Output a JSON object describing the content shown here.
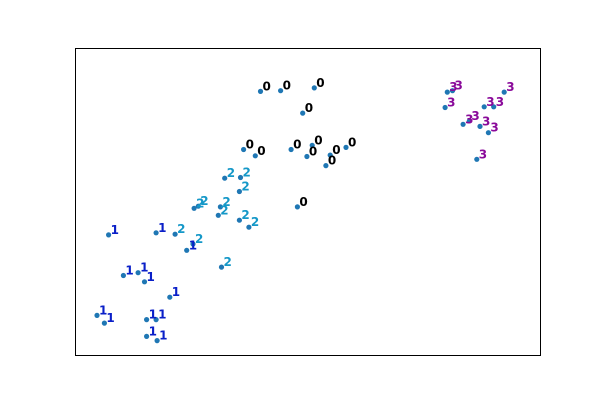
{
  "chart_data": {
    "type": "scatter",
    "title": "",
    "xlabel": "",
    "ylabel": "",
    "axis_visible": false,
    "grid": false,
    "legend": "none",
    "xlim": [
      -20,
      20
    ],
    "ylim": [
      -20,
      20
    ],
    "marker_color": "#1f77b4",
    "label_colors": {
      "0": "#000000",
      "1": "#0a1fc8",
      "2": "#1598c8",
      "3": "#8a0a9a"
    },
    "points": [
      {
        "x": -4.5,
        "y": 15.8,
        "label": "0"
      },
      {
        "x": -2.6,
        "y": 15.9,
        "label": "0"
      },
      {
        "x": 0.6,
        "y": 16.3,
        "label": "0"
      },
      {
        "x": -0.5,
        "y": 12.7,
        "label": "0"
      },
      {
        "x": -6.1,
        "y": 7.5,
        "label": "0"
      },
      {
        "x": -5.0,
        "y": 6.6,
        "label": "0"
      },
      {
        "x": -1.6,
        "y": 7.5,
        "label": "0"
      },
      {
        "x": 0.4,
        "y": 8.1,
        "label": "0"
      },
      {
        "x": 3.6,
        "y": 7.8,
        "label": "0"
      },
      {
        "x": 2.1,
        "y": 6.7,
        "label": "0"
      },
      {
        "x": -0.1,
        "y": 6.5,
        "label": "0"
      },
      {
        "x": 1.7,
        "y": 5.2,
        "label": "0"
      },
      {
        "x": -1.0,
        "y": -0.7,
        "label": "0"
      },
      {
        "x": 13.2,
        "y": 15.7,
        "label": "3"
      },
      {
        "x": 13.7,
        "y": 15.9,
        "label": "3"
      },
      {
        "x": 18.6,
        "y": 15.7,
        "label": "3"
      },
      {
        "x": 13.0,
        "y": 13.5,
        "label": "3"
      },
      {
        "x": 16.7,
        "y": 13.6,
        "label": "3"
      },
      {
        "x": 17.6,
        "y": 13.6,
        "label": "3"
      },
      {
        "x": 14.7,
        "y": 11.1,
        "label": "3"
      },
      {
        "x": 16.3,
        "y": 10.8,
        "label": "3"
      },
      {
        "x": 17.1,
        "y": 9.9,
        "label": "3"
      },
      {
        "x": 15.3,
        "y": 11.6,
        "label": "3"
      },
      {
        "x": 16.0,
        "y": 6.1,
        "label": "3"
      },
      {
        "x": -7.9,
        "y": 3.4,
        "label": "2"
      },
      {
        "x": -6.4,
        "y": 3.5,
        "label": "2"
      },
      {
        "x": -6.5,
        "y": 1.5,
        "label": "2"
      },
      {
        "x": -10.8,
        "y": -0.9,
        "label": "2"
      },
      {
        "x": -10.4,
        "y": -0.6,
        "label": "2"
      },
      {
        "x": -8.3,
        "y": -0.7,
        "label": "2"
      },
      {
        "x": -8.5,
        "y": -1.9,
        "label": "2"
      },
      {
        "x": -6.5,
        "y": -2.6,
        "label": "2"
      },
      {
        "x": -5.6,
        "y": -3.6,
        "label": "2"
      },
      {
        "x": -12.6,
        "y": -4.6,
        "label": "2"
      },
      {
        "x": -10.9,
        "y": -6.0,
        "label": "2"
      },
      {
        "x": -8.2,
        "y": -9.3,
        "label": "2"
      },
      {
        "x": -11.5,
        "y": -6.9,
        "label": "1"
      },
      {
        "x": -14.4,
        "y": -4.4,
        "label": "1"
      },
      {
        "x": -18.9,
        "y": -4.7,
        "label": "1"
      },
      {
        "x": -17.5,
        "y": -10.5,
        "label": "1"
      },
      {
        "x": -16.1,
        "y": -10.1,
        "label": "1"
      },
      {
        "x": -15.5,
        "y": -11.4,
        "label": "1"
      },
      {
        "x": -13.1,
        "y": -13.6,
        "label": "1"
      },
      {
        "x": -20.0,
        "y": -16.2,
        "label": "1"
      },
      {
        "x": -19.3,
        "y": -17.3,
        "label": "1"
      },
      {
        "x": -15.3,
        "y": -16.8,
        "label": "1"
      },
      {
        "x": -14.4,
        "y": -16.8,
        "label": "1"
      },
      {
        "x": -15.3,
        "y": -19.2,
        "label": "1"
      },
      {
        "x": -14.3,
        "y": -19.8,
        "label": "1"
      }
    ]
  }
}
